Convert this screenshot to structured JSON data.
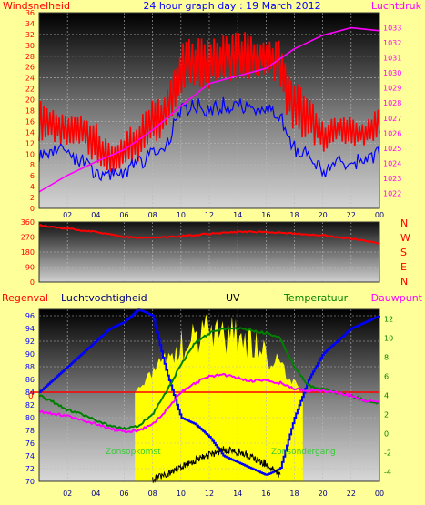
{
  "title": "24 hour graph day : 19 March 2012",
  "colors": {
    "background": "#ffff99",
    "red": "#ff0000",
    "magenta": "#ff00ff",
    "blue": "#0000ff",
    "navy": "#000080",
    "green": "#008000",
    "lime": "#33cc33",
    "yellow": "#ffff00",
    "black": "#000000"
  },
  "chart_data": [
    {
      "type": "line",
      "title": "24 hour graph day : 19 March 2012",
      "left_label": "Windsnelheid",
      "right_label": "Luchtdruk",
      "x_ticks": [
        "02",
        "04",
        "06",
        "08",
        "10",
        "12",
        "14",
        "16",
        "18",
        "20",
        "22",
        "00"
      ],
      "ylim_left": [
        0,
        36
      ],
      "y_ticks_left": [
        "0",
        "2",
        "4",
        "6",
        "8",
        "10",
        "12",
        "14",
        "16",
        "18",
        "20",
        "22",
        "24",
        "26",
        "28",
        "30",
        "32",
        "34",
        "36"
      ],
      "ylim_right": [
        1021,
        1034
      ],
      "y_ticks_right": [
        "1022",
        "1023",
        "1024",
        "1025",
        "1026",
        "1027",
        "1028",
        "1029",
        "1030",
        "1031",
        "1032",
        "1033"
      ],
      "series": [
        {
          "color": "#ff0000",
          "style": "band",
          "x": [
            0,
            1,
            2,
            3,
            4,
            5,
            6,
            7,
            8,
            9,
            10,
            11,
            12,
            13,
            14,
            15,
            16,
            17,
            17.5,
            18,
            19,
            20,
            21,
            22,
            23,
            24
          ],
          "low": [
            12,
            12,
            10,
            11,
            7,
            6,
            7,
            8,
            11,
            13,
            19,
            20,
            21,
            23,
            23,
            23,
            24,
            22,
            16,
            13,
            12,
            10,
            12,
            11,
            11,
            13
          ],
          "high": [
            20,
            19,
            18,
            17,
            16,
            12,
            14,
            17,
            20,
            22,
            31,
            32,
            31,
            32,
            33,
            32,
            32,
            31,
            26,
            24,
            22,
            16,
            17,
            17,
            16,
            19
          ]
        },
        {
          "color": "#0000ff",
          "x": [
            0,
            1,
            2,
            3,
            4,
            5,
            6,
            7,
            8,
            9,
            10,
            11,
            12,
            13,
            14,
            15,
            16,
            17,
            17.5,
            18,
            19,
            20,
            21,
            22,
            23,
            24
          ],
          "y": [
            10,
            11,
            10,
            9,
            6,
            6,
            7,
            8,
            10,
            12,
            18,
            19,
            18,
            19,
            19,
            18,
            18,
            17,
            13,
            11,
            10,
            7,
            8,
            9,
            8,
            10
          ]
        },
        {
          "color": "#ff00ff",
          "axis": "right",
          "x": [
            0,
            2,
            4,
            6,
            8,
            10,
            12,
            14,
            16,
            18,
            20,
            22,
            24
          ],
          "y": [
            1022.1,
            1023.2,
            1024.1,
            1024.9,
            1026.2,
            1027.8,
            1029.3,
            1029.8,
            1030.3,
            1031.6,
            1032.5,
            1033.0,
            1032.8
          ]
        }
      ]
    },
    {
      "type": "line",
      "x_ticks": [
        "02",
        "04",
        "06",
        "08",
        "10",
        "12",
        "14",
        "16",
        "18",
        "20",
        "22",
        "00"
      ],
      "ylim": [
        0,
        360
      ],
      "y_ticks": [
        "0",
        "90",
        "180",
        "270",
        "360"
      ],
      "direction_labels": [
        "N",
        "W",
        "S",
        "E",
        "N"
      ],
      "series": [
        {
          "color": "#ff0000",
          "x": [
            0,
            2,
            4,
            6,
            8,
            10,
            12,
            14,
            16,
            18,
            20,
            22,
            24
          ],
          "y": [
            340,
            320,
            300,
            270,
            265,
            275,
            290,
            300,
            300,
            290,
            280,
            260,
            230
          ]
        }
      ]
    },
    {
      "type": "line",
      "labels": {
        "regenval": "Regenval",
        "luchtvochtigheid": "Luchtvochtigheid",
        "uv": "UV",
        "temperatuur": "Temperatuur",
        "dauwpunt": "Dauwpunt"
      },
      "annotations": [
        "Zonsopkomst",
        "Zonsondergang"
      ],
      "sunrise": 6.75,
      "sunset": 18.6,
      "x_ticks": [
        "02",
        "04",
        "06",
        "08",
        "10",
        "12",
        "14",
        "16",
        "18",
        "20",
        "22",
        "00"
      ],
      "ylim_left": [
        70,
        97
      ],
      "y_ticks_left": [
        "70",
        "72",
        "74",
        "76",
        "78",
        "80",
        "82",
        "84",
        "86",
        "88",
        "90",
        "92",
        "94",
        "96"
      ],
      "rain_zero_label": "0",
      "ylim_right": [
        -5,
        13
      ],
      "y_ticks_right": [
        "-4",
        "-2",
        "0",
        "2",
        "4",
        "6",
        "8",
        "10",
        "12"
      ],
      "series": [
        {
          "color": "#0000ff",
          "axis": "left",
          "x": [
            0,
            1,
            2,
            3,
            4,
            5,
            6,
            7,
            8,
            9,
            10,
            11,
            12,
            13,
            14,
            15,
            16,
            17,
            18,
            19,
            20,
            21,
            22,
            23,
            24
          ],
          "y": [
            84,
            86,
            88,
            90,
            92,
            94,
            95,
            97,
            96,
            87,
            80,
            79,
            77,
            74,
            73,
            72,
            71,
            72,
            80,
            86,
            90,
            92,
            94,
            95,
            96
          ]
        },
        {
          "color": "#008000",
          "axis": "right",
          "x": [
            0,
            1,
            2,
            3,
            4,
            5,
            6,
            7,
            8,
            9,
            10,
            11,
            12,
            13,
            14,
            15,
            16,
            17,
            18,
            19,
            20,
            21,
            22,
            23,
            24
          ],
          "y": [
            4,
            3.3,
            2.5,
            2,
            1.4,
            0.8,
            0.5,
            0.8,
            2,
            4.5,
            7.2,
            9.5,
            10.5,
            11,
            11,
            10.8,
            10.5,
            10,
            7,
            5,
            4.7,
            4.3,
            4,
            3.4,
            3.2
          ]
        },
        {
          "color": "#ff00ff",
          "axis": "right",
          "x": [
            0,
            1,
            2,
            3,
            4,
            5,
            6,
            7,
            8,
            9,
            10,
            11,
            12,
            13,
            14,
            15,
            16,
            17,
            18,
            19,
            20,
            21,
            22,
            23,
            24
          ],
          "y": [
            2.3,
            2.1,
            1.8,
            1.4,
            1,
            0.5,
            0.2,
            0.3,
            1,
            2.5,
            4.3,
            5.3,
            6,
            6.2,
            5.8,
            5.5,
            5.6,
            5.3,
            4.7,
            4.5,
            4.5,
            4.3,
            4,
            3.4,
            3.3
          ]
        },
        {
          "color": "#000000",
          "axis": "right",
          "name_ref": "UV",
          "x": [
            8,
            9,
            10,
            11,
            12,
            13,
            14,
            15,
            16,
            17
          ],
          "y": [
            -4.8,
            -4.3,
            -3.5,
            -2.8,
            -2.2,
            -1.7,
            -1.9,
            -2.4,
            -3.2,
            -4.5
          ]
        }
      ]
    }
  ]
}
